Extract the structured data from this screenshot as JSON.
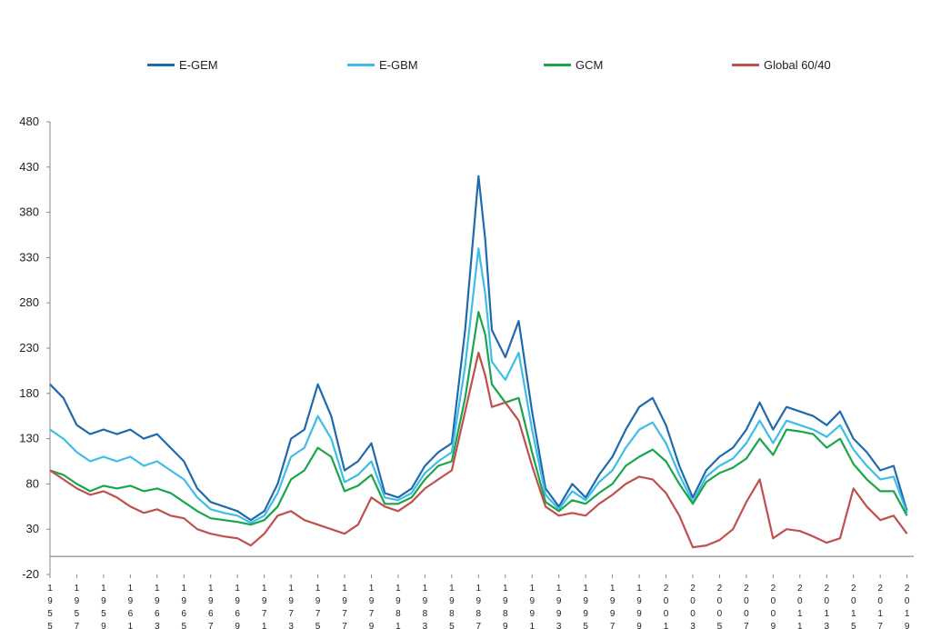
{
  "chart_data": {
    "type": "line",
    "title": "",
    "xlabel": "",
    "ylabel": "",
    "ylim": [
      -20,
      480
    ],
    "yticks": [
      -20,
      30,
      80,
      130,
      180,
      230,
      280,
      330,
      380,
      430,
      480
    ],
    "xlim": [
      1955,
      2019.5
    ],
    "xtick_labels": [
      "1955",
      "1957",
      "1959",
      "1961",
      "1963",
      "1965",
      "1967",
      "1969",
      "1971",
      "1973",
      "1975",
      "1977",
      "1979",
      "1981",
      "1983",
      "1985",
      "1987",
      "1989",
      "1991",
      "1993",
      "1995",
      "1997",
      "1999",
      "2001",
      "2003",
      "2005",
      "2007",
      "2009",
      "2011",
      "2013",
      "2015",
      "2017",
      "2019"
    ],
    "legend_position": "top",
    "grid": false,
    "x": [
      1955,
      1956,
      1957,
      1958,
      1959,
      1960,
      1961,
      1962,
      1963,
      1964,
      1965,
      1966,
      1967,
      1968,
      1969,
      1970,
      1971,
      1972,
      1973,
      1974,
      1975,
      1976,
      1977,
      1978,
      1979,
      1980,
      1981,
      1982,
      1983,
      1984,
      1985,
      1986,
      1987,
      1987.5,
      1988,
      1989,
      1990,
      1991,
      1992,
      1993,
      1994,
      1995,
      1996,
      1997,
      1998,
      1999,
      2000,
      2001,
      2002,
      2003,
      2004,
      2005,
      2006,
      2007,
      2008,
      2009,
      2010,
      2011,
      2012,
      2013,
      2014,
      2015,
      2016,
      2017,
      2018,
      2019
    ],
    "series": [
      {
        "name": "E-GEM",
        "color": "#1f6aad",
        "values": [
          190,
          175,
          145,
          135,
          140,
          135,
          140,
          130,
          135,
          120,
          105,
          75,
          60,
          55,
          50,
          40,
          50,
          80,
          130,
          140,
          190,
          155,
          95,
          105,
          125,
          70,
          65,
          75,
          100,
          115,
          125,
          250,
          420,
          350,
          250,
          220,
          260,
          160,
          75,
          55,
          80,
          65,
          90,
          110,
          140,
          165,
          175,
          145,
          100,
          65,
          95,
          110,
          120,
          140,
          170,
          140,
          165,
          160,
          155,
          145,
          160,
          130,
          115,
          95,
          100,
          50
        ]
      },
      {
        "name": "E-GBM",
        "color": "#3dbde7",
        "values": [
          140,
          130,
          115,
          105,
          110,
          105,
          110,
          100,
          105,
          95,
          85,
          65,
          52,
          48,
          45,
          37,
          45,
          70,
          110,
          120,
          155,
          130,
          82,
          90,
          105,
          65,
          62,
          70,
          92,
          105,
          115,
          210,
          340,
          290,
          215,
          195,
          225,
          140,
          68,
          52,
          72,
          62,
          82,
          95,
          120,
          140,
          148,
          125,
          90,
          60,
          88,
          100,
          108,
          125,
          150,
          125,
          150,
          145,
          140,
          132,
          145,
          118,
          100,
          85,
          88,
          48
        ]
      },
      {
        "name": "GCM",
        "color": "#1aa54a",
        "values": [
          95,
          90,
          80,
          72,
          78,
          75,
          78,
          72,
          75,
          70,
          60,
          50,
          42,
          40,
          38,
          35,
          40,
          55,
          85,
          95,
          120,
          110,
          72,
          78,
          90,
          58,
          58,
          65,
          85,
          100,
          105,
          175,
          270,
          245,
          190,
          170,
          175,
          115,
          60,
          50,
          62,
          58,
          70,
          80,
          100,
          110,
          118,
          105,
          80,
          58,
          82,
          92,
          98,
          108,
          130,
          112,
          140,
          138,
          135,
          120,
          130,
          102,
          85,
          72,
          72,
          45
        ]
      },
      {
        "name": "Global 60/40",
        "color": "#c0504d",
        "values": [
          95,
          85,
          75,
          68,
          72,
          65,
          55,
          48,
          52,
          45,
          42,
          30,
          25,
          22,
          20,
          12,
          25,
          45,
          50,
          40,
          35,
          30,
          25,
          35,
          65,
          55,
          50,
          60,
          75,
          85,
          95,
          160,
          225,
          200,
          165,
          170,
          150,
          100,
          55,
          45,
          48,
          45,
          58,
          68,
          80,
          88,
          85,
          70,
          45,
          10,
          12,
          18,
          30,
          60,
          85,
          20,
          30,
          28,
          22,
          15,
          20,
          75,
          55,
          40,
          45,
          25
        ]
      }
    ]
  }
}
